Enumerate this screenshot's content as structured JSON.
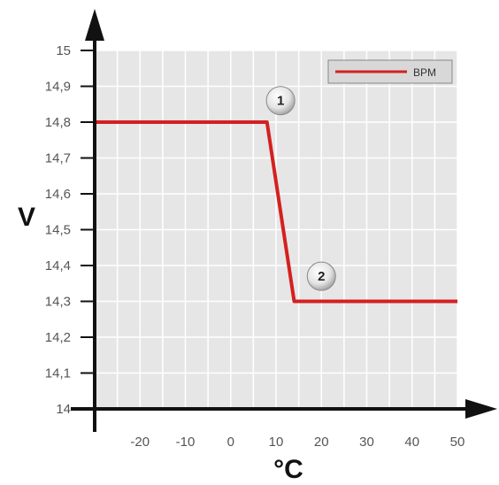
{
  "chart_data": {
    "type": "line",
    "xlabel": "°C",
    "ylabel": "V",
    "xlim": [
      -30,
      50
    ],
    "ylim": [
      14,
      15
    ],
    "xticks": [
      "-20",
      "-10",
      "0",
      "10",
      "20",
      "30",
      "40",
      "50"
    ],
    "yticks": [
      "14",
      "14,1",
      "14,2",
      "14,3",
      "14,4",
      "14,5",
      "14,6",
      "14,7",
      "14,8",
      "14,9",
      "15"
    ],
    "grid": true,
    "legend_position": "top-right",
    "series": [
      {
        "name": "BPM",
        "color": "#d42020",
        "x": [
          -30,
          8,
          14,
          50
        ],
        "y": [
          14.8,
          14.8,
          14.3,
          14.3
        ]
      }
    ],
    "annotations": [
      {
        "label": "1",
        "x": 11,
        "y": 14.86
      },
      {
        "label": "2",
        "x": 20,
        "y": 14.37
      }
    ]
  }
}
